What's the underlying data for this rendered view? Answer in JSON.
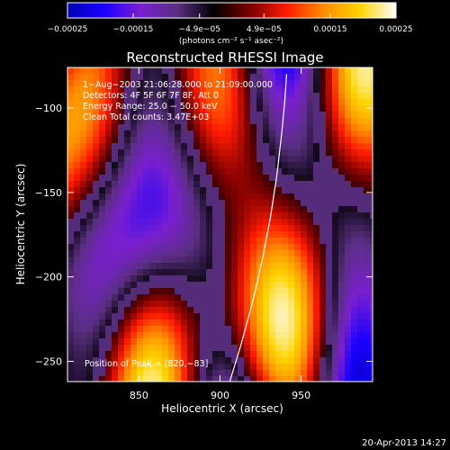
{
  "chart_data": {
    "type": "heatmap",
    "title": "Reconstructed RHESSI Image",
    "xlabel": "Heliocentric X (arcsec)",
    "ylabel": "Heliocentric Y (arcsec)",
    "xlim": [
      806,
      994
    ],
    "ylim": [
      -262,
      -76
    ],
    "x_ticks": [
      {
        "value": 850,
        "label": "850"
      },
      {
        "value": 900,
        "label": "900"
      },
      {
        "value": 950,
        "label": "950"
      }
    ],
    "y_ticks": [
      {
        "value": -100,
        "label": "−100"
      },
      {
        "value": -150,
        "label": "−150"
      },
      {
        "value": -200,
        "label": "−200"
      },
      {
        "value": -250,
        "label": "−250"
      }
    ],
    "colorbar": {
      "range": [
        -0.00025,
        0.00025
      ],
      "ticks": [
        {
          "value": -0.00025,
          "label": "−0.00025"
        },
        {
          "value": -0.00015,
          "label": "−0.00015"
        },
        {
          "value": -4.9e-05,
          "label": "−4.9e−05"
        },
        {
          "value": 4.9e-05,
          "label": "4.9e−05"
        },
        {
          "value": 0.00015,
          "label": "0.00015"
        },
        {
          "value": 0.00025,
          "label": "0.00025"
        }
      ],
      "unit_label": "(photons cm⁻² s⁻¹ asec⁻²)",
      "colors": [
        "#0000b4",
        "#1a00ff",
        "#7a1fd0",
        "#5a2f82",
        "#000000",
        "#7a0000",
        "#ff1a00",
        "#ff8c00",
        "#ffd400",
        "#ffffff"
      ]
    },
    "annotations": [
      "1−Aug−2003 21:06:28.000 to 21:09:00.000",
      "Detectors: 4F 5F 6F 7F 8F, Att 0",
      "Energy Range: 25.0 − 50.0 keV",
      "Clean    Total counts: 3.47E+03",
      "Position of Peak = [820,−83]"
    ],
    "limb_curve": [
      [
        906,
        -262
      ],
      [
        913,
        -240
      ],
      [
        920,
        -215
      ],
      [
        926,
        -190
      ],
      [
        931,
        -165
      ],
      [
        935,
        -140
      ],
      [
        938,
        -115
      ],
      [
        940,
        -95
      ],
      [
        941,
        -80
      ]
    ],
    "peak": [
      820,
      -83
    ]
  },
  "footer": {
    "timestamp": "20-Apr-2013 14:27"
  }
}
